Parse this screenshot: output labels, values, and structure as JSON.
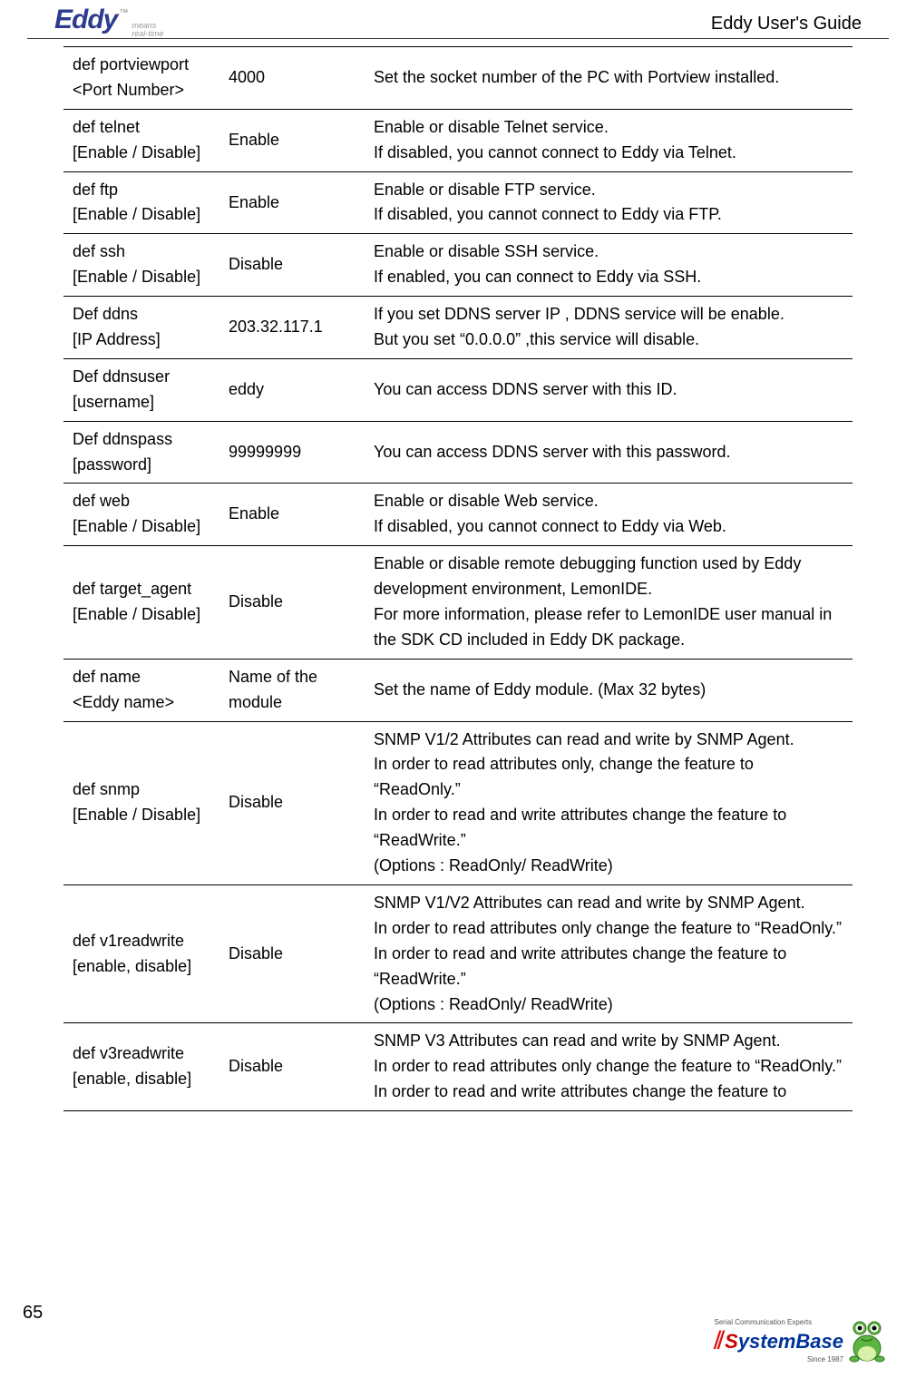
{
  "header": {
    "logo_main": "Eddy",
    "logo_tm": "™",
    "logo_sub1": "means",
    "logo_sub2": "real-time",
    "guide": "Eddy User's Guide"
  },
  "footer": {
    "page": "65",
    "sb_tag": "Serial Communication Experts",
    "sb_slash": "⫽",
    "sb_s": "S",
    "sb_rest": "ystemBase",
    "sb_since": "Since 1987"
  },
  "rows": [
    {
      "cmd": "def portviewport\n<Port Number>",
      "val": "4000",
      "desc": "Set the socket number of the PC with Portview installed.",
      "cls": "tall"
    },
    {
      "cmd": "def telnet\n[Enable / Disable]",
      "val": "Enable",
      "desc": "Enable or disable Telnet service.\nIf disabled, you cannot connect to Eddy via Telnet.",
      "cls": "tall"
    },
    {
      "cmd": "def ftp\n[Enable / Disable]",
      "val": "Enable",
      "desc": "Enable or disable FTP service.\nIf disabled, you cannot connect to Eddy via FTP.",
      "cls": "tall"
    },
    {
      "cmd": "def ssh\n[Enable / Disable]",
      "val": "Disable",
      "desc": "Enable or disable SSH service.\nIf enabled, you can connect to Eddy via SSH.",
      "cls": "tall"
    },
    {
      "cmd": "Def ddns\n[IP Address]",
      "val": "203.32.117.1",
      "desc": "If you set DDNS server IP , DDNS service will be enable.\nBut you set   “0.0.0.0”   ,this service will disable.",
      "cls": ""
    },
    {
      "cmd": "Def ddnsuser\n[username]",
      "val": "eddy",
      "desc": "You can access DDNS server with this ID.",
      "cls": ""
    },
    {
      "cmd": "Def ddnspass\n[password]",
      "val": "99999999",
      "desc": "You can access DDNS server with this password.",
      "cls": ""
    },
    {
      "cmd": "def web\n[Enable / Disable]",
      "val": "Enable",
      "desc": "Enable or disable Web service.\nIf disabled, you cannot connect to Eddy via Web.",
      "cls": "tall"
    },
    {
      "cmd": "def target_agent\n[Enable / Disable]",
      "val": "Disable",
      "desc": "Enable or disable remote debugging function used by Eddy development environment, LemonIDE.\nFor more information, please refer to LemonIDE user manual in the SDK CD included in Eddy DK package.",
      "cls": ""
    },
    {
      "cmd": "def name\n<Eddy name>",
      "val": "Name of the module",
      "desc": "Set the name of Eddy module. (Max 32 bytes)",
      "cls": ""
    },
    {
      "cmd": "def snmp\n[Enable / Disable]",
      "val": "Disable",
      "desc": "SNMP V1/2 Attributes can read and write by SNMP Agent.\nIn order to read attributes only, change the feature to “ReadOnly.”\nIn order to read and write attributes change the feature to “ReadWrite.”\n(Options : ReadOnly/ ReadWrite)",
      "cls": ""
    },
    {
      "cmd": "def v1readwrite\n[enable, disable]",
      "val": "Disable",
      "desc": "SNMP V1/V2 Attributes can read and write by SNMP Agent.\nIn order to read attributes only change the feature to “ReadOnly.”\nIn order to read and write attributes change the feature to “ReadWrite.”\n(Options : ReadOnly/ ReadWrite)",
      "cls": ""
    },
    {
      "cmd": "def v3readwrite\n[enable, disable]",
      "val": "Disable",
      "desc": "SNMP V3 Attributes can read and write by SNMP Agent.\nIn order to read attributes only change the feature to “ReadOnly.”\nIn order to read and write attributes change the feature to",
      "cls": ""
    }
  ]
}
